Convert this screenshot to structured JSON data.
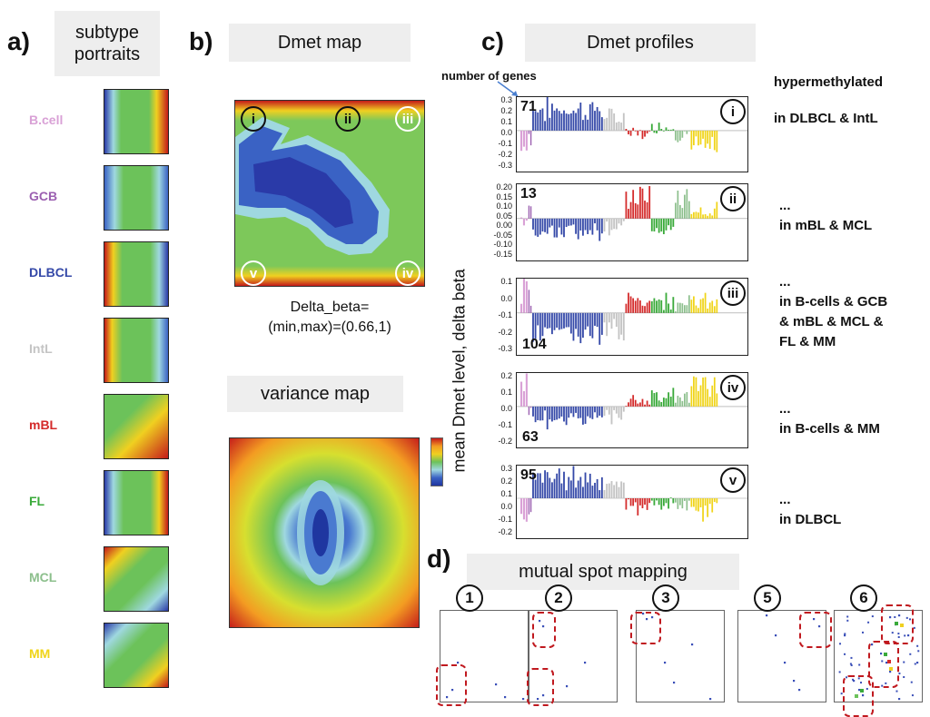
{
  "panel_a": {
    "label": "a)",
    "title_line1": "subtype",
    "title_line2": "portraits",
    "subtypes": [
      {
        "name": "B.cell",
        "color": "#d9a1d6"
      },
      {
        "name": "GCB",
        "color": "#9b5fb0"
      },
      {
        "name": "DLBCL",
        "color": "#3549a8"
      },
      {
        "name": "IntL",
        "color": "#c4c4c4"
      },
      {
        "name": "mBL",
        "color": "#d42a2a"
      },
      {
        "name": "FL",
        "color": "#3aaa3a"
      },
      {
        "name": "MCL",
        "color": "#8cbf8c"
      },
      {
        "name": "MM",
        "color": "#f0d418"
      }
    ]
  },
  "panel_b": {
    "label": "b)",
    "title": "Dmet map",
    "markers": [
      "i",
      "ii",
      "iii",
      "v",
      "iv"
    ],
    "caption_line1": "Delta_beta=",
    "caption_line2": "(min,max)=(0.66,1)",
    "variance_title": "variance  map"
  },
  "panel_c": {
    "label": "c)",
    "title": "Dmet profiles",
    "number_of_genes_label": "number of genes",
    "ylabel": "mean Dmet level, delta beta",
    "profiles": [
      {
        "id": "i",
        "genes": "71",
        "ticks": [
          "0.3",
          "0.2",
          "0.1",
          "0.0",
          "-0.1",
          "-0.2",
          "-0.3"
        ],
        "desc": [
          "hypermethylated",
          "in DLBCL & IntL"
        ]
      },
      {
        "id": "ii",
        "genes": "13",
        "ticks": [
          "0.20",
          "0.15",
          "0.10",
          "0.05",
          "0.00",
          "-0.05",
          "-0.10",
          "-0.15"
        ],
        "desc": [
          "...",
          "in mBL & MCL"
        ]
      },
      {
        "id": "iii",
        "genes": "104",
        "ticks": [
          "0.1",
          "0.0",
          "-0.1",
          "-0.2",
          "-0.3"
        ],
        "desc": [
          "...",
          "in B-cells & GCB",
          "& mBL & MCL &",
          "FL & MM"
        ]
      },
      {
        "id": "iv",
        "genes": "63",
        "ticks": [
          "0.2",
          "0.1",
          "0.0",
          "-0.1",
          "-0.2"
        ],
        "desc": [
          "...",
          "in B-cells & MM"
        ]
      },
      {
        "id": "v",
        "genes": "95",
        "ticks": [
          "0.3",
          "0.2",
          "0.1",
          "0.0",
          "-0.1",
          "-0.2"
        ],
        "desc": [
          "...",
          "in DLBCL"
        ]
      }
    ]
  },
  "panel_d": {
    "label": "d)",
    "title": "mutual spot mapping",
    "spots": [
      "1",
      "2",
      "3",
      "5",
      "6"
    ]
  }
}
